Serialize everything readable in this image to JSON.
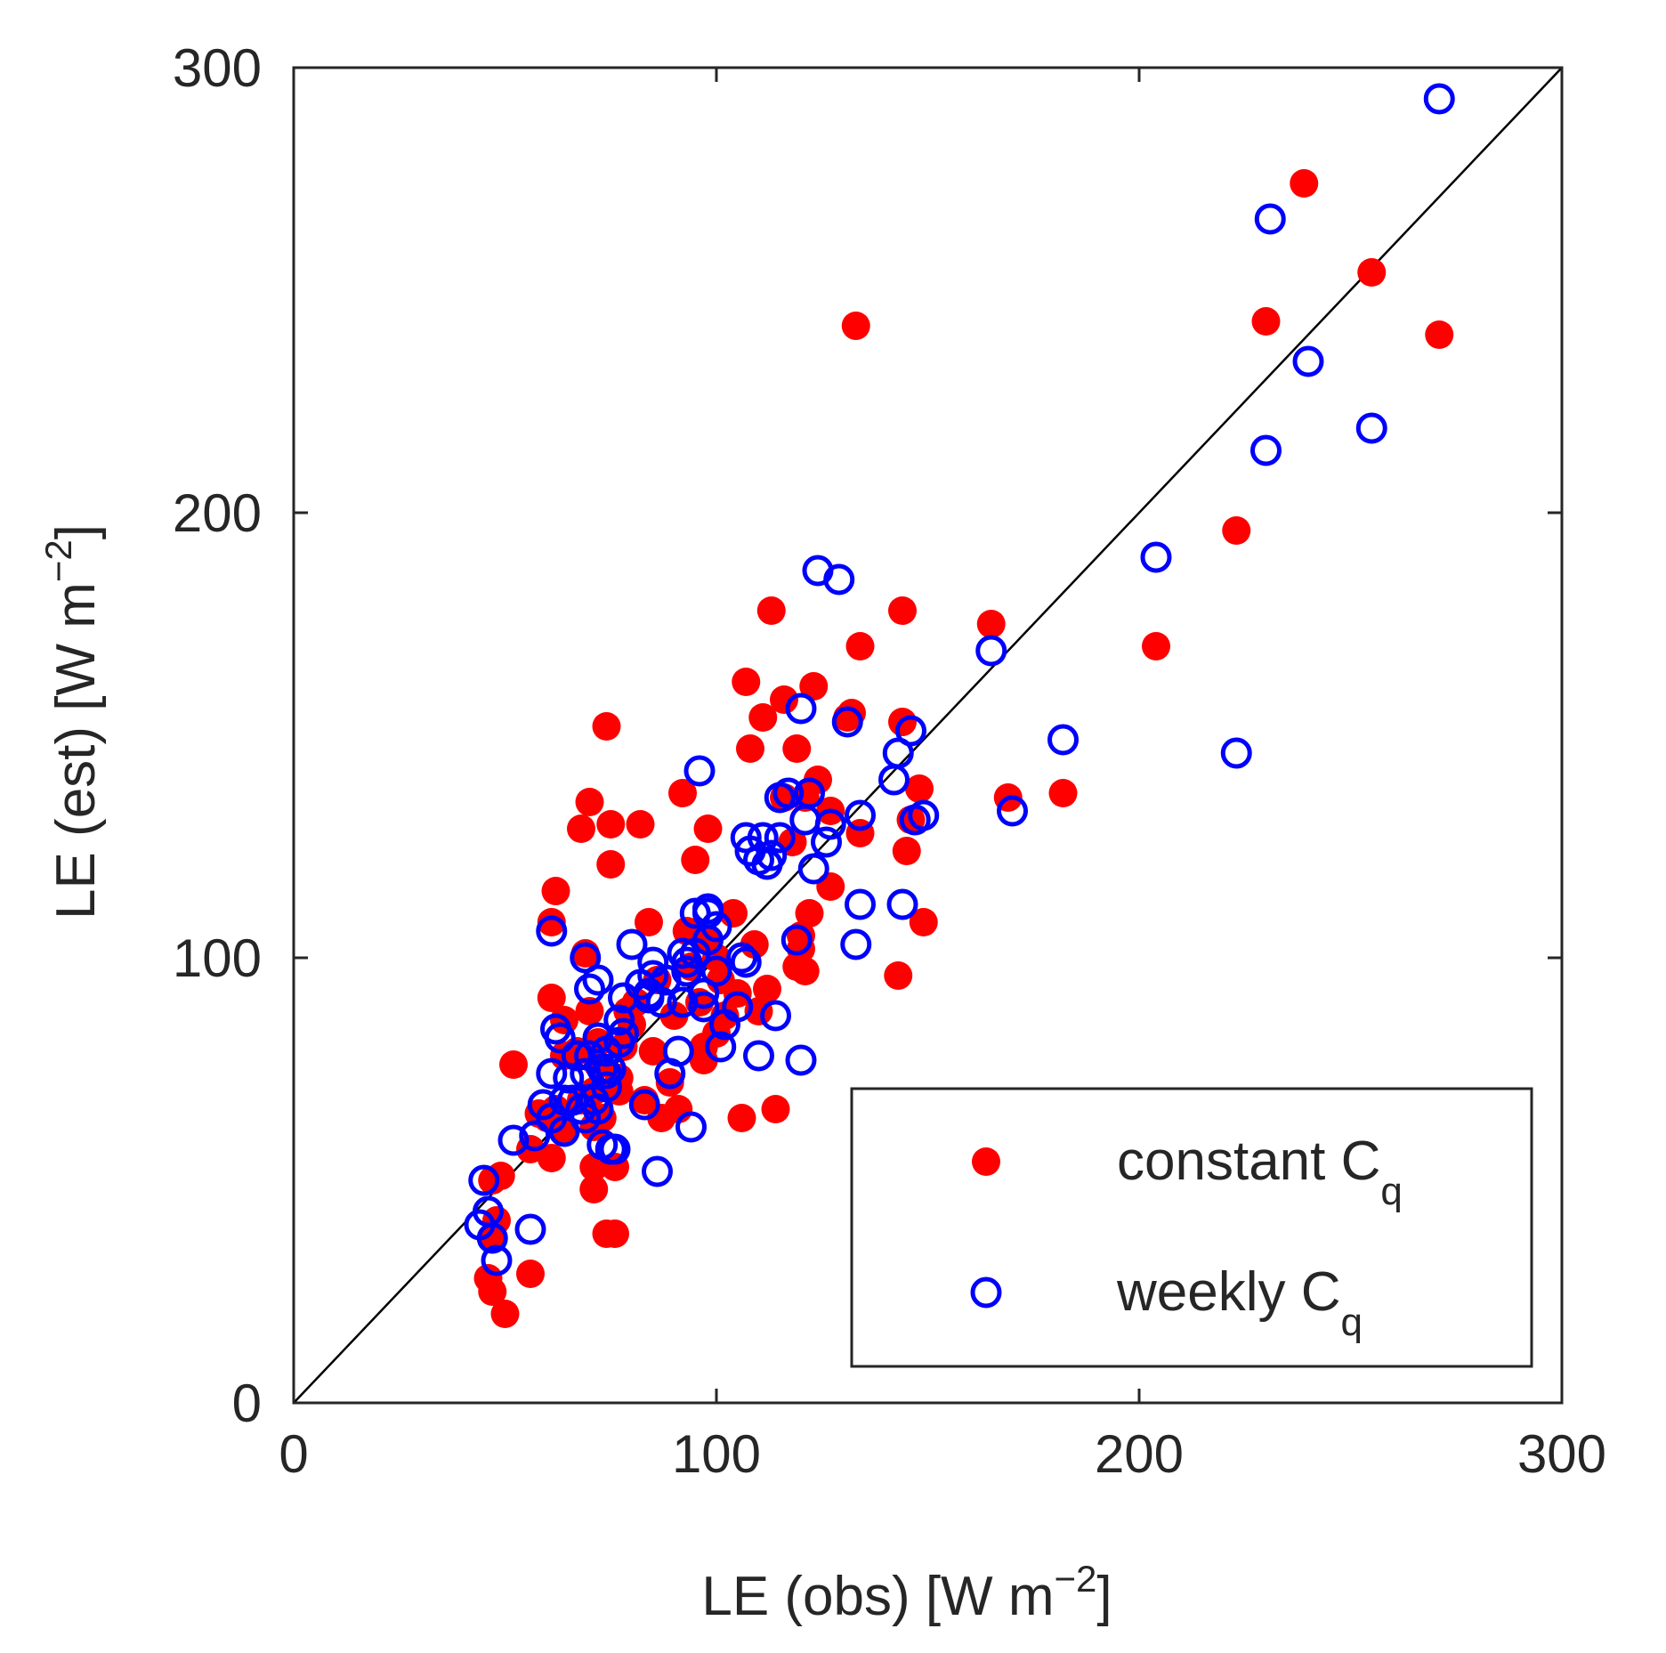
{
  "chart_data": {
    "type": "scatter",
    "title": "",
    "xlabel": "LE (obs) [W m",
    "xlabel_sup": "−2",
    "xlabel_end": "]",
    "ylabel": "LE (est) [W m",
    "ylabel_sup": "−2",
    "ylabel_end": "]",
    "xlim": [
      0,
      300
    ],
    "ylim": [
      0,
      300
    ],
    "xticks": [
      "0",
      "100",
      "200",
      "300"
    ],
    "yticks": [
      "0",
      "100",
      "200",
      "300"
    ],
    "grid": false,
    "reference_line": {
      "name": "1:1 line",
      "x": [
        0,
        300
      ],
      "y": [
        0,
        300
      ],
      "color": "#000000"
    },
    "legend": {
      "location": "bottom-right"
    },
    "series": [
      {
        "name": "constant C",
        "subscript": "q",
        "marker": "filled-circle",
        "color": "#ff0000",
        "points": [
          [
            46,
            28
          ],
          [
            47,
            37
          ],
          [
            49,
            51
          ],
          [
            47,
            50
          ],
          [
            47,
            25
          ],
          [
            50,
            20
          ],
          [
            48,
            41
          ],
          [
            52,
            76
          ],
          [
            56,
            29
          ],
          [
            56,
            57
          ],
          [
            58,
            65
          ],
          [
            60,
            64
          ],
          [
            61,
            55
          ],
          [
            62,
            66
          ],
          [
            61,
            91
          ],
          [
            61,
            108
          ],
          [
            62,
            115
          ],
          [
            64,
            61
          ],
          [
            64,
            78
          ],
          [
            64,
            86
          ],
          [
            67,
            79
          ],
          [
            68,
            68
          ],
          [
            68,
            129
          ],
          [
            69,
            101
          ],
          [
            70,
            135
          ],
          [
            70,
            88
          ],
          [
            71,
            70
          ],
          [
            71,
            62
          ],
          [
            72,
            76
          ],
          [
            71,
            53
          ],
          [
            71,
            48
          ],
          [
            72,
            81
          ],
          [
            73,
            64
          ],
          [
            74,
            38
          ],
          [
            74,
            152
          ],
          [
            75,
            121
          ],
          [
            75,
            130
          ],
          [
            76,
            38
          ],
          [
            76,
            53
          ],
          [
            77,
            70
          ],
          [
            77,
            73
          ],
          [
            78,
            80
          ],
          [
            79,
            88
          ],
          [
            80,
            85
          ],
          [
            81,
            90
          ],
          [
            82,
            130
          ],
          [
            83,
            68
          ],
          [
            84,
            108
          ],
          [
            85,
            79
          ],
          [
            86,
            95
          ],
          [
            87,
            64
          ],
          [
            89,
            72
          ],
          [
            90,
            87
          ],
          [
            91,
            66
          ],
          [
            92,
            137
          ],
          [
            93,
            106
          ],
          [
            94,
            98
          ],
          [
            95,
            122
          ],
          [
            96,
            90
          ],
          [
            97,
            80
          ],
          [
            97,
            77
          ],
          [
            98,
            129
          ],
          [
            98,
            104
          ],
          [
            100,
            100
          ],
          [
            100,
            83
          ],
          [
            101,
            95
          ],
          [
            102,
            87
          ],
          [
            104,
            110
          ],
          [
            105,
            92
          ],
          [
            106,
            64
          ],
          [
            107,
            162
          ],
          [
            108,
            147
          ],
          [
            109,
            103
          ],
          [
            110,
            88
          ],
          [
            111,
            154
          ],
          [
            112,
            93
          ],
          [
            113,
            178
          ],
          [
            114,
            66
          ],
          [
            116,
            158
          ],
          [
            116,
            136
          ],
          [
            118,
            126
          ],
          [
            119,
            98
          ],
          [
            119,
            147
          ],
          [
            120,
            105
          ],
          [
            120,
            102
          ],
          [
            121,
            97
          ],
          [
            121,
            136
          ],
          [
            122,
            110
          ],
          [
            123,
            161
          ],
          [
            124,
            140
          ],
          [
            127,
            116
          ],
          [
            127,
            133
          ],
          [
            131,
            154
          ],
          [
            132,
            155
          ],
          [
            133,
            242
          ],
          [
            134,
            170
          ],
          [
            134,
            128
          ],
          [
            143,
            96
          ],
          [
            144,
            178
          ],
          [
            144,
            153
          ],
          [
            145,
            124
          ],
          [
            146,
            131
          ],
          [
            148,
            138
          ],
          [
            149,
            108
          ],
          [
            165,
            175
          ],
          [
            169,
            136
          ],
          [
            182,
            137
          ],
          [
            204,
            170
          ],
          [
            223,
            196
          ],
          [
            230,
            243
          ],
          [
            239,
            274
          ],
          [
            255,
            254
          ],
          [
            271,
            240
          ]
        ]
      },
      {
        "name": "weekly C",
        "subscript": "q",
        "marker": "open-circle",
        "color": "#0000ff",
        "points": [
          [
            44,
            40
          ],
          [
            45,
            50
          ],
          [
            46,
            43
          ],
          [
            47,
            37
          ],
          [
            48,
            32
          ],
          [
            56,
            39
          ],
          [
            52,
            59
          ],
          [
            57,
            60
          ],
          [
            59,
            67
          ],
          [
            61,
            64
          ],
          [
            61,
            74
          ],
          [
            61,
            106
          ],
          [
            62,
            84
          ],
          [
            63,
            82
          ],
          [
            64,
            61
          ],
          [
            64,
            68
          ],
          [
            65,
            73
          ],
          [
            66,
            68
          ],
          [
            67,
            78
          ],
          [
            68,
            66
          ],
          [
            69,
            64
          ],
          [
            69,
            74
          ],
          [
            69,
            100
          ],
          [
            70,
            93
          ],
          [
            70,
            78
          ],
          [
            71,
            68
          ],
          [
            72,
            95
          ],
          [
            72,
            82
          ],
          [
            72,
            66
          ],
          [
            73,
            58
          ],
          [
            73,
            75
          ],
          [
            74,
            79
          ],
          [
            74,
            74
          ],
          [
            74,
            71
          ],
          [
            75,
            57
          ],
          [
            75,
            75
          ],
          [
            76,
            57
          ],
          [
            77,
            86
          ],
          [
            77,
            81
          ],
          [
            78,
            83
          ],
          [
            78,
            91
          ],
          [
            80,
            103
          ],
          [
            82,
            94
          ],
          [
            83,
            67
          ],
          [
            84,
            91
          ],
          [
            84,
            92
          ],
          [
            85,
            99
          ],
          [
            85,
            96
          ],
          [
            86,
            52
          ],
          [
            87,
            90
          ],
          [
            88,
            95
          ],
          [
            89,
            74
          ],
          [
            91,
            79
          ],
          [
            92,
            101
          ],
          [
            92,
            90
          ],
          [
            93,
            97
          ],
          [
            93,
            99
          ],
          [
            94,
            62
          ],
          [
            95,
            101
          ],
          [
            95,
            110
          ],
          [
            96,
            142
          ],
          [
            97,
            89
          ],
          [
            97,
            92
          ],
          [
            98,
            104
          ],
          [
            98,
            110
          ],
          [
            98,
            111
          ],
          [
            100,
            107
          ],
          [
            100,
            97
          ],
          [
            101,
            80
          ],
          [
            102,
            85
          ],
          [
            105,
            89
          ],
          [
            106,
            100
          ],
          [
            107,
            99
          ],
          [
            107,
            127
          ],
          [
            108,
            124
          ],
          [
            110,
            78
          ],
          [
            110,
            122
          ],
          [
            111,
            127
          ],
          [
            112,
            121
          ],
          [
            113,
            123
          ],
          [
            114,
            87
          ],
          [
            115,
            136
          ],
          [
            115,
            127
          ],
          [
            117,
            137
          ],
          [
            119,
            104
          ],
          [
            120,
            77
          ],
          [
            120,
            156
          ],
          [
            121,
            131
          ],
          [
            122,
            137
          ],
          [
            123,
            120
          ],
          [
            124,
            187
          ],
          [
            126,
            126
          ],
          [
            127,
            130
          ],
          [
            129,
            185
          ],
          [
            131,
            153
          ],
          [
            133,
            103
          ],
          [
            134,
            132
          ],
          [
            134,
            112
          ],
          [
            142,
            140
          ],
          [
            143,
            146
          ],
          [
            144,
            112
          ],
          [
            146,
            151
          ],
          [
            147,
            131
          ],
          [
            149,
            132
          ],
          [
            165,
            169
          ],
          [
            170,
            133
          ],
          [
            182,
            149
          ],
          [
            204,
            190
          ],
          [
            223,
            146
          ],
          [
            230,
            214
          ],
          [
            231,
            266
          ],
          [
            240,
            234
          ],
          [
            255,
            219
          ],
          [
            271,
            293
          ]
        ]
      }
    ]
  }
}
